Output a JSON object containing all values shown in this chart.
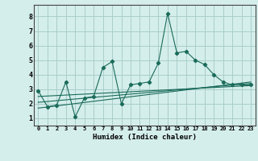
{
  "x": [
    0,
    1,
    2,
    3,
    4,
    5,
    6,
    7,
    8,
    9,
    10,
    11,
    12,
    13,
    14,
    15,
    16,
    17,
    18,
    19,
    20,
    21,
    22,
    23
  ],
  "y_main": [
    2.9,
    1.8,
    1.9,
    3.5,
    1.1,
    2.4,
    2.5,
    4.5,
    4.9,
    2.0,
    3.3,
    3.4,
    3.5,
    4.8,
    8.2,
    5.5,
    5.6,
    5.0,
    4.7,
    4.0,
    3.5,
    3.3,
    3.3,
    3.3
  ],
  "trend1_x": [
    0,
    23
  ],
  "trend1_y": [
    2.1,
    3.4
  ],
  "trend2_x": [
    0,
    23
  ],
  "trend2_y": [
    2.5,
    3.25
  ],
  "trend3_x": [
    0,
    23
  ],
  "trend3_y": [
    1.7,
    3.5
  ],
  "line_color": "#1a6b5a",
  "bg_color": "#d4eeeb",
  "grid_color": "#aaceca",
  "xlabel": "Humidex (Indice chaleur)",
  "xlim": [
    -0.5,
    23.5
  ],
  "ylim": [
    0.5,
    8.8
  ],
  "yticks": [
    1,
    2,
    3,
    4,
    5,
    6,
    7,
    8
  ],
  "xticks": [
    0,
    1,
    2,
    3,
    4,
    5,
    6,
    7,
    8,
    9,
    10,
    11,
    12,
    13,
    14,
    15,
    16,
    17,
    18,
    19,
    20,
    21,
    22,
    23
  ]
}
